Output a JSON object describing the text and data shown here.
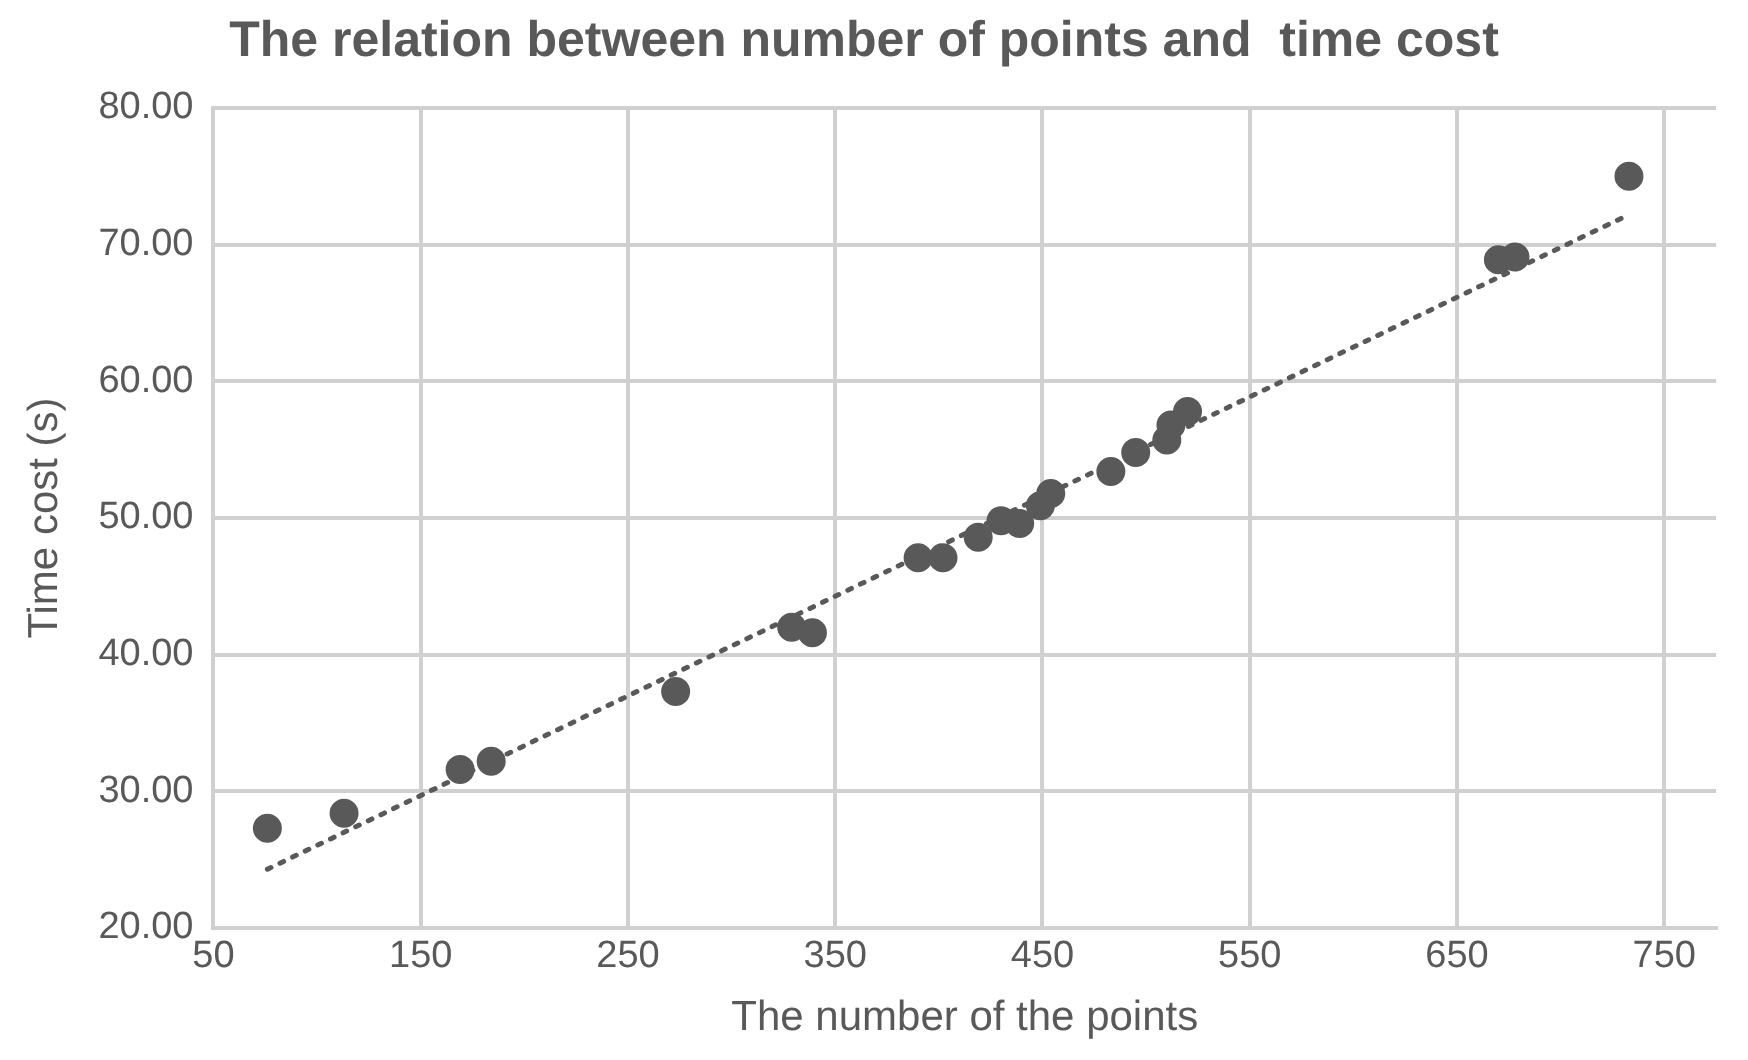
{
  "chart_data": {
    "type": "scatter",
    "title": "The relation between number of points and  time cost",
    "xlabel": "The number of the points",
    "ylabel": "Time cost (s)",
    "xlim": [
      50,
      775
    ],
    "xticks": [
      50,
      150,
      250,
      350,
      450,
      550,
      650,
      750
    ],
    "ylim": [
      20,
      80
    ],
    "yticks": [
      {
        "value": 20,
        "label": "20.00"
      },
      {
        "value": 30,
        "label": "30.00"
      },
      {
        "value": 40,
        "label": "40.00"
      },
      {
        "value": 50,
        "label": "50.00"
      },
      {
        "value": 60,
        "label": "60.00"
      },
      {
        "value": 70,
        "label": "70.00"
      },
      {
        "value": 80,
        "label": "80.00"
      }
    ],
    "grid": true,
    "legend": false,
    "marker": "circle",
    "series": [
      {
        "color": "#595959",
        "x": [
          76,
          113,
          169,
          184,
          273,
          329,
          339,
          390,
          402,
          419,
          430,
          439,
          449,
          454,
          483,
          495,
          510,
          512,
          520,
          670,
          678,
          733
        ],
        "values": [
          27.3,
          28.4,
          31.6,
          32.2,
          37.3,
          42.0,
          41.6,
          47.1,
          47.1,
          48.6,
          49.8,
          49.6,
          50.9,
          51.8,
          53.4,
          54.8,
          55.7,
          56.8,
          57.8,
          68.9,
          69.1,
          75.0
        ]
      },
      {
        "type": "line",
        "color": "#595959",
        "line_style": "dotted",
        "marker": "none",
        "x": [
          76,
          733
        ],
        "values": [
          24.3,
          72.2
        ]
      }
    ]
  }
}
